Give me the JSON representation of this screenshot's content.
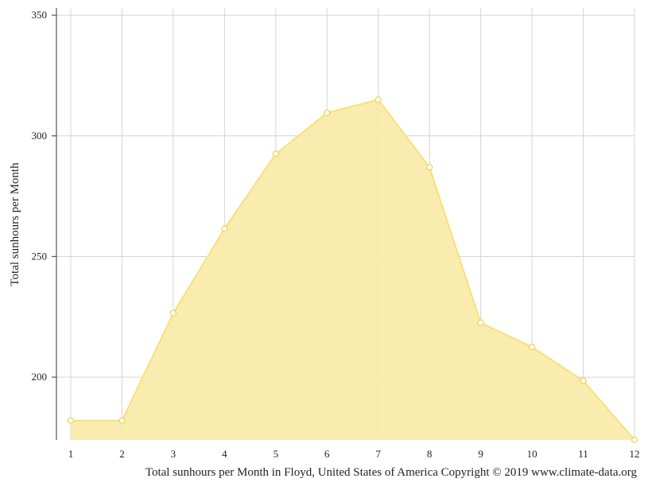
{
  "chart_data": {
    "type": "area",
    "title": "",
    "xlabel": "",
    "ylabel": "Total sunhours per Month",
    "caption": "Total sunhours per Month in Floyd, United States of America Copyright © 2019 www.climate-data.org",
    "x": [
      1,
      2,
      3,
      4,
      5,
      6,
      7,
      8,
      9,
      10,
      11,
      12
    ],
    "x_tick_labels": [
      "1",
      "2",
      "3",
      "4",
      "5",
      "6",
      "7",
      "8",
      "9",
      "10",
      "11",
      "12"
    ],
    "y_ticks": [
      200,
      250,
      300,
      350
    ],
    "y_tick_labels": [
      "200",
      "250",
      "300",
      "350"
    ],
    "ylim": [
      174,
      353
    ],
    "xlim": [
      1,
      12
    ],
    "grid": true,
    "series": [
      {
        "values": [
          182,
          182,
          226.5,
          261.5,
          292.5,
          309.5,
          315,
          287,
          222.5,
          212.5,
          198.5,
          174
        ]
      }
    ],
    "colors": {
      "fill": "#f9ebaa",
      "line": "#f7e17c",
      "marker_stroke": "#f0d35a",
      "marker_fill": "#ffffff"
    }
  }
}
